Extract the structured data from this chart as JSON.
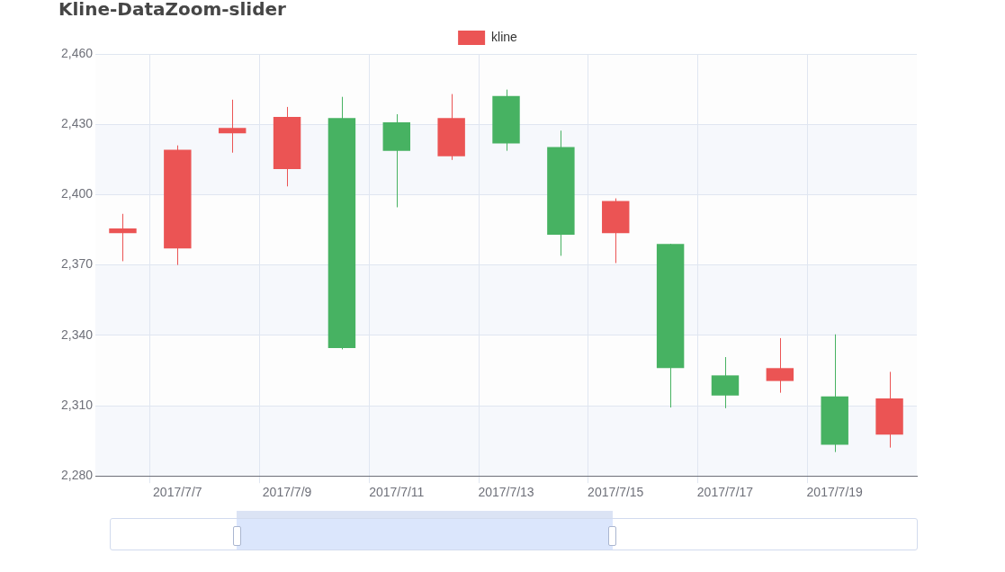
{
  "chart_data": {
    "type": "candlestick",
    "title": "Kline-DataZoom-slider",
    "legend": "top",
    "grid": true,
    "categories": [
      null,
      "2017/7/7",
      null,
      "2017/7/9",
      null,
      "2017/7/11",
      null,
      "2017/7/13",
      null,
      "2017/7/15",
      null,
      "2017/7/17",
      null,
      "2017/7/19",
      null
    ],
    "ylim": [
      2280,
      2460
    ],
    "yticks": [
      {
        "value": 2280,
        "label": "2,280"
      },
      {
        "value": 2310,
        "label": "2,310"
      },
      {
        "value": 2340,
        "label": "2,340"
      },
      {
        "value": 2370,
        "label": "2,370"
      },
      {
        "value": 2400,
        "label": "2,400"
      },
      {
        "value": 2430,
        "label": "2,430"
      },
      {
        "value": 2460,
        "label": "2,460"
      }
    ],
    "series": [
      {
        "name": "kline",
        "color": "#eb5454",
        "colors": [
          "#eb5454",
          "#eb5454",
          "#eb5454",
          "#eb5454",
          "#47b262",
          "#47b262",
          "#eb5454",
          "#47b262",
          "#47b262",
          "#eb5454",
          "#47b262",
          "#47b262",
          "#eb5454",
          "#47b262",
          "#eb5454"
        ],
        "ohlc": [
          [
            2383.6,
            2391.8,
            2371.6,
            2385.6
          ],
          [
            2377,
            2421,
            2370,
            2419.1
          ],
          [
            2426.1,
            2440.5,
            2417.9,
            2428.4
          ],
          [
            2410.9,
            2437.4,
            2403.5,
            2433.1
          ],
          [
            2432.7,
            2441.7,
            2334,
            2334.6
          ],
          [
            2430.8,
            2434.3,
            2394.6,
            2418.7
          ],
          [
            2416.4,
            2442.9,
            2414.8,
            2432.7
          ],
          [
            2442.1,
            2444.8,
            2418.7,
            2421.8
          ],
          [
            2420.3,
            2427.3,
            2373.9,
            2382.9
          ],
          [
            2383.6,
            2398.4,
            2370.8,
            2397.3
          ],
          [
            2379,
            2379,
            2309.2,
            2326
          ],
          [
            2322.9,
            2330.7,
            2308.9,
            2314.3
          ],
          [
            2320.5,
            2338.8,
            2315.5,
            2326
          ],
          [
            2313.9,
            2340.4,
            2290.2,
            2293.3
          ],
          [
            2297.6,
            2324.4,
            2292.1,
            2313.1
          ]
        ]
      }
    ]
  }
}
